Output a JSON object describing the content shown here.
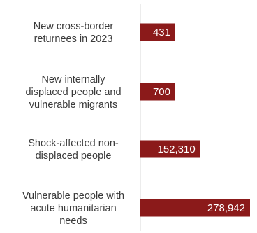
{
  "chart_data": {
    "type": "bar",
    "orientation": "horizontal",
    "categories": [
      "New cross-border returnees in 2023",
      "New internally displaced people and vulnerable migrants",
      "Shock-affected non-displaced people",
      "Vulnerable people with acute humanitarian needs"
    ],
    "category_lines": [
      [
        "New cross-border",
        "returnees in 2023"
      ],
      [
        "New internally",
        "displaced people and",
        "vulnerable migrants"
      ],
      [
        "Shock-affected non-",
        "displaced people"
      ],
      [
        "Vulnerable people with",
        "acute humanitarian",
        "needs"
      ]
    ],
    "values": [
      431,
      700,
      152310,
      278942
    ],
    "value_labels": [
      "431",
      "700",
      "152,310",
      "278,942"
    ],
    "bar_color": "#8b1a1a",
    "axis_color": "#d9d9d9",
    "label_color": "#3a3a3a",
    "value_label_color": "#ffffff",
    "grid": false,
    "legend": "none"
  }
}
